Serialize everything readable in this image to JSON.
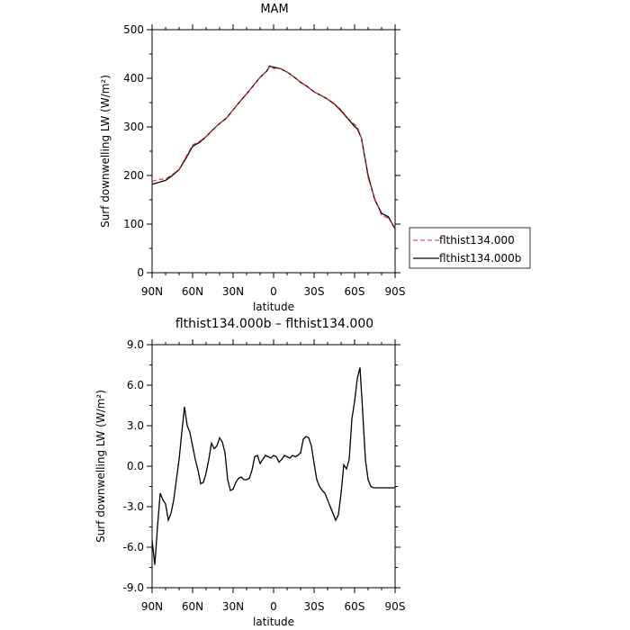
{
  "chart_data": [
    {
      "type": "line",
      "title": "MAM",
      "xlabel": "latitude",
      "ylabel": "Surf downwelling LW (W/m²)",
      "xlim": [
        90,
        -90
      ],
      "ylim": [
        0,
        500
      ],
      "yticks": [
        "0",
        "100",
        "200",
        "300",
        "400",
        "500"
      ],
      "xticks": [
        "90N",
        "60N",
        "30N",
        "0",
        "30S",
        "60S",
        "90S"
      ],
      "legend_position": "right",
      "series": [
        {
          "name": "flthist134.000",
          "color": "#d62728",
          "dash": "dashed",
          "x": [
            90,
            85,
            80,
            75,
            70,
            65,
            60,
            55,
            50,
            45,
            40,
            35,
            30,
            25,
            20,
            15,
            10,
            5,
            3,
            0,
            -5,
            -10,
            -15,
            -20,
            -25,
            -30,
            -35,
            -40,
            -45,
            -50,
            -55,
            -60,
            -62,
            -65,
            -70,
            -75,
            -80,
            -85,
            -90
          ],
          "y": [
            188,
            192,
            193,
            202,
            213,
            238,
            263,
            270,
            280,
            295,
            307,
            318,
            335,
            352,
            368,
            385,
            402,
            415,
            427,
            420,
            420,
            413,
            403,
            392,
            383,
            372,
            365,
            357,
            348,
            335,
            318,
            305,
            300,
            278,
            195,
            152,
            118,
            112,
            92
          ]
        },
        {
          "name": "flthist134.000b",
          "color": "#000000",
          "dash": "solid",
          "x": [
            90,
            85,
            80,
            75,
            70,
            65,
            60,
            55,
            50,
            45,
            40,
            35,
            30,
            25,
            20,
            15,
            10,
            5,
            3,
            0,
            -5,
            -10,
            -15,
            -20,
            -25,
            -30,
            -35,
            -40,
            -45,
            -50,
            -55,
            -60,
            -62,
            -65,
            -70,
            -75,
            -80,
            -85,
            -90
          ],
          "y": [
            182,
            186,
            190,
            200,
            212,
            235,
            260,
            268,
            280,
            294,
            307,
            318,
            335,
            352,
            368,
            385,
            402,
            415,
            425,
            423,
            420,
            413,
            403,
            392,
            383,
            372,
            365,
            357,
            347,
            333,
            317,
            301,
            296,
            278,
            200,
            150,
            122,
            115,
            90
          ]
        }
      ]
    },
    {
      "type": "line",
      "title": "flthist134.000b – flthist134.000",
      "xlabel": "latitude",
      "ylabel": "Surf downwelling LW (W/m²)",
      "xlim": [
        90,
        -90
      ],
      "ylim": [
        -9,
        9
      ],
      "yticks": [
        "-9.0",
        "-6.0",
        "-3.0",
        "0.0",
        "3.0",
        "6.0",
        "9.0"
      ],
      "xticks": [
        "90N",
        "60N",
        "30N",
        "0",
        "30S",
        "60S",
        "90S"
      ],
      "series": [
        {
          "color": "#000000",
          "x": [
            90,
            88,
            86,
            84,
            82,
            80,
            78,
            76,
            74,
            72,
            70,
            68,
            66,
            64,
            62,
            60,
            58,
            56,
            54,
            52,
            50,
            48,
            46,
            44,
            42,
            40,
            38,
            36,
            34,
            32,
            30,
            28,
            26,
            24,
            22,
            20,
            18,
            16,
            14,
            12,
            10,
            8,
            6,
            4,
            2,
            0,
            -2,
            -4,
            -6,
            -8,
            -10,
            -12,
            -14,
            -16,
            -18,
            -20,
            -22,
            -24,
            -26,
            -28,
            -30,
            -32,
            -34,
            -36,
            -38,
            -40,
            -42,
            -44,
            -46,
            -48,
            -50,
            -52,
            -54,
            -56,
            -58,
            -60,
            -62,
            -64,
            -66,
            -68,
            -70,
            -72,
            -74,
            -76,
            -78,
            -80,
            -82,
            -84,
            -86,
            -88,
            -90
          ],
          "y": [
            -5.5,
            -7.3,
            -4.5,
            -2.0,
            -2.5,
            -2.8,
            -4.0,
            -3.5,
            -2.5,
            -1.0,
            0.5,
            2.5,
            4.4,
            3.0,
            2.5,
            1.5,
            0.5,
            -0.3,
            -1.3,
            -1.2,
            -0.5,
            0.5,
            1.7,
            1.3,
            1.5,
            2.1,
            1.8,
            1.0,
            -1.0,
            -1.8,
            -1.7,
            -1.2,
            -0.9,
            -0.8,
            -1.0,
            -1.0,
            -0.9,
            -0.3,
            0.7,
            0.8,
            0.2,
            0.5,
            0.8,
            0.7,
            0.6,
            0.8,
            0.7,
            0.3,
            0.5,
            0.8,
            0.7,
            0.6,
            0.8,
            0.7,
            0.8,
            1.0,
            2.0,
            2.2,
            2.1,
            1.5,
            0.2,
            -1.0,
            -1.5,
            -1.8,
            -2.0,
            -2.5,
            -3.0,
            -3.5,
            -4.0,
            -3.6,
            -2.0,
            0.1,
            -0.2,
            0.5,
            3.5,
            4.8,
            6.5,
            7.3,
            4.0,
            0.5,
            -1.0,
            -1.5,
            -1.6,
            -1.6,
            -1.6,
            -1.6,
            -1.6,
            -1.6,
            -1.6,
            -1.6,
            -1.6
          ]
        }
      ]
    }
  ]
}
